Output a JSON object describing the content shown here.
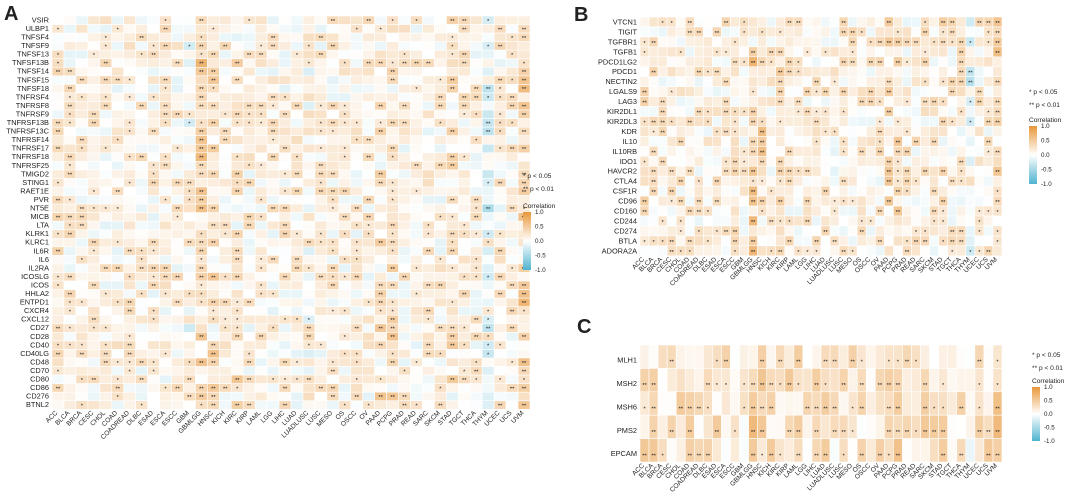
{
  "chart_data": [
    {
      "type": "heatmap",
      "panel": "A",
      "title": "",
      "rows": [
        "VSIR",
        "ULBP1",
        "TNFSF4",
        "TNFSF9",
        "TNFSF13",
        "TNFSF13B",
        "TNFSF14",
        "TNFSF15",
        "TNFSF18",
        "TNFRSF4",
        "TNFRSF8",
        "TNFRSF9",
        "TNFRSF13B",
        "TNFRSF13C",
        "TNFRSF14",
        "TNFRSF17",
        "TNFRSF18",
        "TNFRSF25",
        "TMIGD2",
        "STING1",
        "RAET1E",
        "PVR",
        "NT5E",
        "MICB",
        "LTA",
        "KLRK1",
        "KLRC1",
        "IL6R",
        "IL6",
        "IL2RA",
        "ICOSLG",
        "ICOS",
        "HHLA2",
        "ENTPD1",
        "CXCR4",
        "CXCL12",
        "CD27",
        "CD28",
        "CD40",
        "CD40LG",
        "CD48",
        "CD70",
        "CD80",
        "CD86",
        "CD276",
        "BTNL2"
      ],
      "columns": [
        "ACC",
        "BLCA",
        "BRCA",
        "CESC",
        "CHOL",
        "COAD",
        "COADREAD",
        "DLBC",
        "ESAD",
        "ESCA",
        "ESCC",
        "GBM",
        "GBMLGG",
        "HNSC",
        "KICH",
        "KIRC",
        "KIRP",
        "LAML",
        "LGG",
        "LIHC",
        "LUAD",
        "LUADLUSC",
        "LUSC",
        "MESO",
        "OS",
        "OSCC",
        "OV",
        "PAAD",
        "PCPG",
        "PRAD",
        "READ",
        "SARC",
        "SKCM",
        "STAD",
        "TGCT",
        "THCA",
        "THYM",
        "UCEC",
        "UCS",
        "UVM"
      ],
      "value_range": [
        -1,
        1
      ],
      "legend": {
        "title": "Correlation",
        "ticks": [
          "1.0",
          "0.5",
          "0.0",
          "-0.5",
          "-1.0"
        ],
        "notes": [
          "* p < 0.05",
          "** p < 0.01"
        ]
      }
    },
    {
      "type": "heatmap",
      "panel": "B",
      "title": "",
      "rows": [
        "VTCN1",
        "TIGIT",
        "TGFBR1",
        "TGFB1",
        "PDCD1LG2",
        "PDCD1",
        "NECTIN2",
        "LGALS9",
        "LAG3",
        "KIR2DL1",
        "KIR2DL3",
        "KDR",
        "IL10",
        "IL10RB",
        "IDO1",
        "HAVCR2",
        "CTLA4",
        "CSF1R",
        "CD96",
        "CD160",
        "CD244",
        "CD274",
        "BTLA",
        "ADORA2A"
      ],
      "columns": [
        "ACC",
        "BLCA",
        "BRCA",
        "CESC",
        "CHOL",
        "COAD",
        "COADREAD",
        "DLBC",
        "ESAD",
        "ESCA",
        "ESCC",
        "GBM",
        "GBMLGG",
        "HNSC",
        "KICH",
        "KIRC",
        "KIRP",
        "LAML",
        "LGG",
        "LIHC",
        "LUAD",
        "LUADLUSC",
        "LUSC",
        "MESO",
        "OS",
        "OSCC",
        "OV",
        "PAAD",
        "PCPG",
        "PRAD",
        "READ",
        "SARC",
        "SKCM",
        "STAD",
        "TGCT",
        "THCA",
        "THYM",
        "UCEC",
        "UCS",
        "UVM"
      ],
      "value_range": [
        -1,
        1
      ],
      "legend": {
        "title": "Correlation",
        "ticks": [
          "1.0",
          "0.5",
          "0.0",
          "-0.5",
          "-1.0"
        ],
        "notes": [
          "* p < 0.05",
          "** p < 0.01"
        ]
      }
    },
    {
      "type": "heatmap",
      "panel": "C",
      "title": "",
      "rows": [
        "MLH1",
        "MSH2",
        "MSH6",
        "PMS2",
        "EPCAM"
      ],
      "columns": [
        "ACC",
        "BLCA",
        "BRCA",
        "CESC",
        "CHOL",
        "COAD",
        "COADREAD",
        "DLBC",
        "ESAD",
        "ESCA",
        "ESCC",
        "GBM",
        "GBMLGG",
        "HNSC",
        "KICH",
        "KIRC",
        "KIRP",
        "LAML",
        "LGG",
        "LIHC",
        "LUAD",
        "LUADLUSC",
        "LUSC",
        "MESO",
        "OS",
        "OSCC",
        "OV",
        "PAAD",
        "PCPG",
        "PRAD",
        "READ",
        "SARC",
        "SKCM",
        "STAD",
        "TGCT",
        "THCA",
        "THYM",
        "UCEC",
        "UCS",
        "UVM"
      ],
      "value_range": [
        -1,
        1
      ],
      "legend": {
        "title": "Correlation",
        "ticks": [
          "1.0",
          "0.5",
          "0.0",
          "-0.5",
          "-1.0"
        ],
        "notes": [
          "* p < 0.05",
          "** p < 0.01"
        ]
      }
    }
  ],
  "colors": {
    "positive": "#e8973a",
    "neutral": "#ffffff",
    "negative": "#4fb3cf",
    "grid": "#ffffff"
  }
}
